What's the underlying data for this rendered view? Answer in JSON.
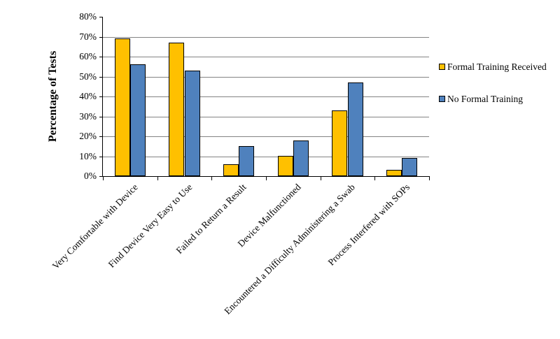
{
  "chart_data": {
    "type": "bar",
    "title": "",
    "xlabel": "",
    "ylabel": "Percentage of Tests",
    "categories": [
      "Very Comfortable with Device",
      "Find Device Very Easy to Use",
      "Failed to Return a Result",
      "Device Malfunctioned",
      "Encountered a Difficulty Administering a Swab",
      "Process Interfered with SOPs"
    ],
    "series": [
      {
        "name": "Formal Training Received",
        "color": "#FFC000",
        "values": [
          69,
          67,
          6,
          10,
          33,
          3
        ]
      },
      {
        "name": "No Formal Training",
        "color": "#4F81BD",
        "values": [
          56,
          53,
          15,
          18,
          47,
          9
        ]
      }
    ],
    "ylim": [
      0,
      80
    ],
    "ytick_step": 10,
    "ytick_labels": [
      "0%",
      "10%",
      "20%",
      "30%",
      "40%",
      "50%",
      "60%",
      "70%",
      "80%"
    ],
    "grid": true,
    "legend_position": "right"
  },
  "style": {
    "grid_color": "#848484",
    "axis_color": "#000000",
    "bar_border_color": "#000000",
    "background": "#FFFFFF",
    "text_color": "#000000"
  }
}
